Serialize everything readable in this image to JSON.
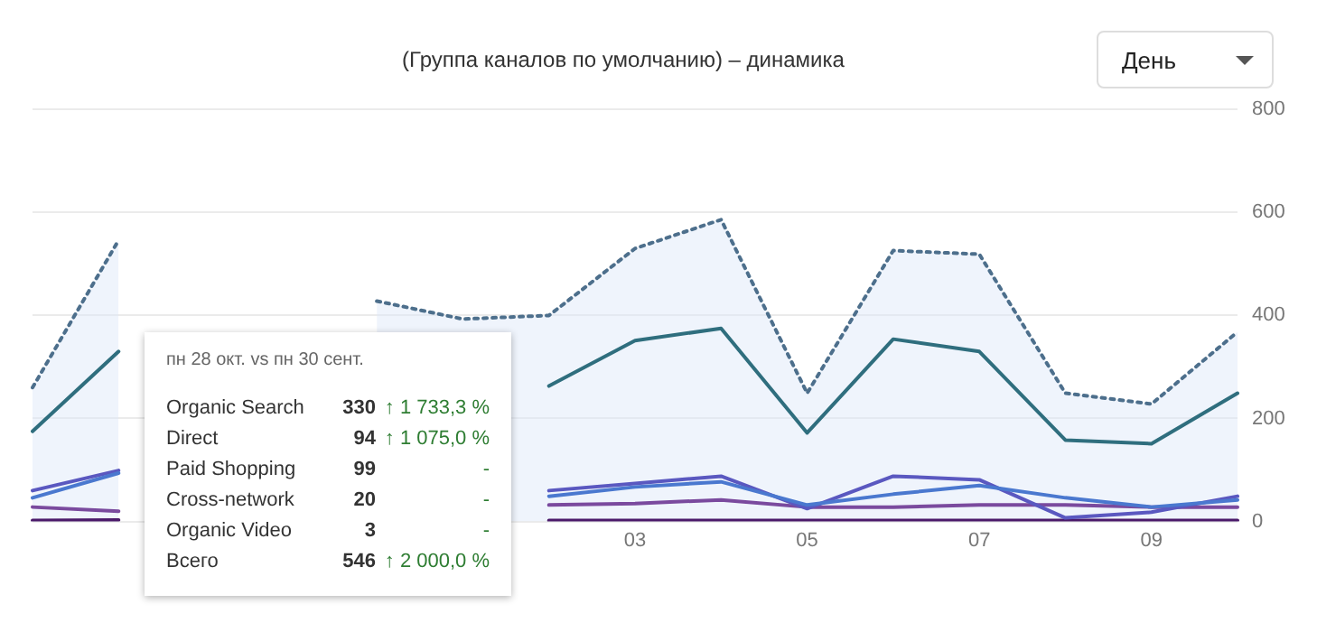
{
  "chart_data": {
    "type": "line",
    "title": "(Группа каналов по умолчанию) – динамика",
    "categories": [
      null,
      null,
      null,
      null,
      null,
      null,
      null,
      "03",
      null,
      "05",
      null,
      "07",
      null,
      "09",
      null
    ],
    "series": [
      {
        "color": "#2f6e7e",
        "values": [
          175,
          330,
          null,
          null,
          null,
          null,
          263,
          351,
          375,
          172,
          354,
          330,
          158,
          151,
          249
        ]
      },
      {
        "color": "#4a78cf",
        "values": [
          46,
          94,
          null,
          null,
          null,
          null,
          49,
          67,
          77,
          32,
          53,
          70,
          46,
          28,
          42
        ]
      },
      {
        "color": "#5a58c0",
        "values": [
          60,
          99,
          null,
          null,
          null,
          null,
          60,
          74,
          88,
          25,
          88,
          81,
          7,
          18,
          49
        ]
      },
      {
        "color": "#7a4a9e",
        "values": [
          28,
          20,
          null,
          null,
          null,
          null,
          32,
          35,
          42,
          28,
          28,
          32,
          32,
          28,
          28
        ]
      },
      {
        "color": "#4b1a6a",
        "values": [
          2,
          3,
          null,
          null,
          null,
          null,
          2,
          2,
          2,
          2,
          2,
          2,
          2,
          2,
          2
        ]
      },
      {
        "type": "area",
        "color": "#4d6f8c",
        "line_style": "dotted",
        "values": [
          260,
          546,
          null,
          null,
          428,
          393,
          400,
          530,
          586,
          249,
          526,
          519,
          249,
          228,
          368
        ]
      }
    ],
    "ylim": [
      0,
      800
    ],
    "yticks": [
      0,
      200,
      400,
      600,
      800
    ],
    "grid": "y",
    "legend": false,
    "annotations": [
      "День",
      "пн 28 окт. vs пн 30 сент.",
      "Organic Search",
      "330",
      "↑ 1 733,3 %",
      "Direct",
      "94",
      "↑ 1 075,0 %",
      "Paid Shopping",
      "99",
      "-",
      "Cross-network",
      "20",
      "-",
      "Organic Video",
      "3",
      "-",
      "Всего",
      "546",
      "↑ 2 000,0 %"
    ]
  }
}
